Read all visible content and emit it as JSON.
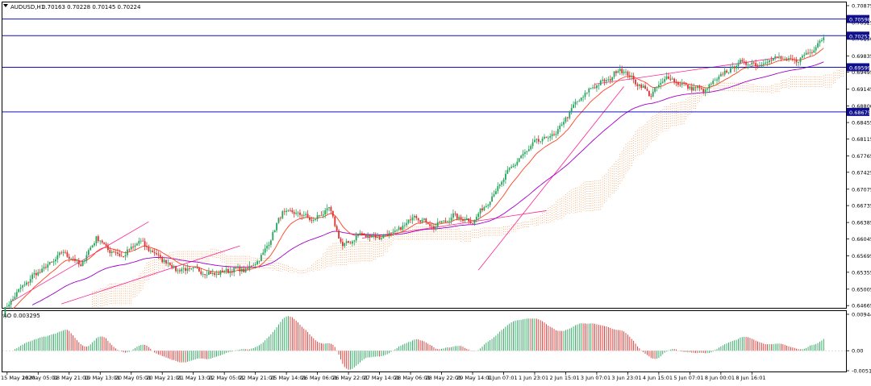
{
  "header": {
    "symbol_tf": "AUDUSD,H1",
    "ohlc": "0.70163 0.70228 0.70145 0.70224"
  },
  "price_scale": {
    "ticks": [
      "0.70875",
      "0.70525",
      "0.70190",
      "0.69835",
      "0.69495",
      "0.69145",
      "0.68800",
      "0.68455",
      "0.68115",
      "0.67765",
      "0.67425",
      "0.67075",
      "0.66735",
      "0.66385",
      "0.66045",
      "0.65695",
      "0.65355",
      "0.65005",
      "0.64665"
    ],
    "hlines": [
      {
        "label": "0.70598",
        "value": 0.70598
      },
      {
        "label": "0.70253",
        "value": 0.70253
      },
      {
        "label": "0.69599",
        "value": 0.69599
      },
      {
        "label": "0.68675",
        "value": 0.68675
      }
    ]
  },
  "time_axis": {
    "labels": [
      "15 May 2020",
      "18 May 05:01",
      "18 May 21:01",
      "19 May 13:01",
      "20 May 05:01",
      "20 May 21:01",
      "21 May 13:01",
      "22 May 05:01",
      "22 May 21:01",
      "25 May 14:01",
      "26 May 06:01",
      "26 May 22:01",
      "27 May 14:01",
      "28 May 06:01",
      "28 May 22:01",
      "29 May 14:01",
      "1 Jun 07:01",
      "1 Jun 23:01",
      "2 Jun 15:01",
      "3 Jun 07:01",
      "3 Jun 23:01",
      "4 Jun 15:01",
      "5 Jun 07:01",
      "8 Jun 00:01",
      "8 Jun 16:01"
    ]
  },
  "indicator": {
    "label": "AO 0.003295",
    "ticks": [
      "0.009448",
      "0.00",
      "-0.00518"
    ]
  },
  "colors": {
    "bull": "#26a65b",
    "bear": "#e0302b",
    "hline": "#1010c0",
    "hline_label_bg": "#10108c",
    "ma_fast": "#ff4020",
    "ma_slow": "#a000c8",
    "trend": "#ff2090",
    "cloud": "#f0a060"
  },
  "chart_data": {
    "type": "candlestick",
    "title": "AUDUSD,H1",
    "ylim": [
      0.6461,
      0.7095
    ],
    "anchors": [
      [
        0,
        0.6452
      ],
      [
        6,
        0.6488
      ],
      [
        15,
        0.6527
      ],
      [
        24,
        0.6552
      ],
      [
        31,
        0.6578
      ],
      [
        40,
        0.6549
      ],
      [
        48,
        0.6608
      ],
      [
        55,
        0.658
      ],
      [
        62,
        0.6569
      ],
      [
        70,
        0.66
      ],
      [
        80,
        0.6568
      ],
      [
        90,
        0.654
      ],
      [
        98,
        0.6542
      ],
      [
        108,
        0.6531
      ],
      [
        118,
        0.6541
      ],
      [
        126,
        0.6541
      ],
      [
        134,
        0.6572
      ],
      [
        144,
        0.666
      ],
      [
        152,
        0.6658
      ],
      [
        160,
        0.6643
      ],
      [
        168,
        0.6668
      ],
      [
        175,
        0.6588
      ],
      [
        184,
        0.6614
      ],
      [
        194,
        0.6608
      ],
      [
        204,
        0.6622
      ],
      [
        212,
        0.6654
      ],
      [
        222,
        0.6629
      ],
      [
        232,
        0.6652
      ],
      [
        242,
        0.664
      ],
      [
        252,
        0.6692
      ],
      [
        262,
        0.6753
      ],
      [
        274,
        0.6804
      ],
      [
        285,
        0.6822
      ],
      [
        294,
        0.688
      ],
      [
        304,
        0.692
      ],
      [
        312,
        0.6934
      ],
      [
        318,
        0.6958
      ],
      [
        326,
        0.693
      ],
      [
        334,
        0.6903
      ],
      [
        342,
        0.694
      ],
      [
        352,
        0.692
      ],
      [
        362,
        0.6912
      ],
      [
        370,
        0.6943
      ],
      [
        380,
        0.697
      ],
      [
        390,
        0.6966
      ],
      [
        398,
        0.698
      ],
      [
        408,
        0.6972
      ],
      [
        416,
        0.6992
      ],
      [
        423,
        0.7022
      ]
    ],
    "ao_peak": 0.009448,
    "ao_trough": -0.00518,
    "ao_last": 0.003295
  }
}
